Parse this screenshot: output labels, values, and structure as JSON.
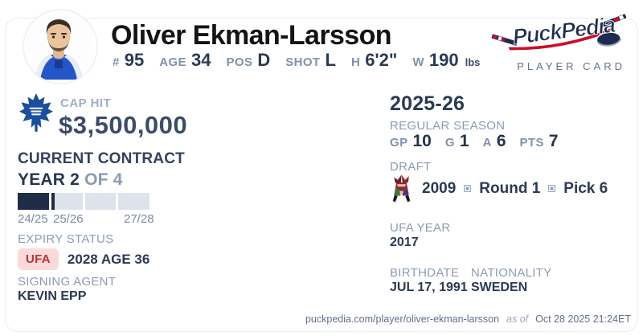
{
  "header": {
    "name": "Oliver Ekman-Larsson",
    "stats": [
      {
        "label": "#",
        "value": "95"
      },
      {
        "label": "AGE",
        "value": "34"
      },
      {
        "label": "POS",
        "value": "D"
      },
      {
        "label": "SHOT",
        "value": "L"
      },
      {
        "label": "H",
        "value": "6'2\""
      },
      {
        "label": "W",
        "value": "190",
        "suffix": "lbs"
      }
    ],
    "brand": {
      "wordmark": "PuckPedia",
      "tagline": "PLAYER CARD"
    }
  },
  "left": {
    "cap_hit_label": "CAP HIT",
    "cap_hit_value": "$3,500,000",
    "contract_heading": "CURRENT CONTRACT",
    "year_current": "YEAR 2",
    "year_of": "OF 4",
    "contract_progress": {
      "segments": [
        100,
        11,
        0,
        0
      ]
    },
    "season_ticks": [
      "24/25",
      "25/26",
      "27/28"
    ],
    "expiry_label": "EXPIRY STATUS",
    "expiry_badge": "UFA",
    "expiry_value": "2028 AGE 36",
    "agent_label": "SIGNING AGENT",
    "agent_value": "KEVIN EPP"
  },
  "right": {
    "season_heading": "2025-26",
    "regular_season_label": "REGULAR SEASON",
    "season_stats": [
      {
        "label": "GP",
        "value": "10"
      },
      {
        "label": "G",
        "value": "1"
      },
      {
        "label": "A",
        "value": "6"
      },
      {
        "label": "PTS",
        "value": "7"
      }
    ],
    "draft_label": "DRAFT",
    "draft_year": "2009",
    "draft_round": "Round 1",
    "draft_pick": "Pick 6",
    "ufa_year_label": "UFA YEAR",
    "ufa_year_value": "2017",
    "birthdate_label": "BIRTHDATE",
    "birthdate_value": "JUL 17, 1991",
    "nationality_label": "NATIONALITY",
    "nationality_value": "SWEDEN"
  },
  "footer": {
    "url": "puckpedia.com/player/oliver-ekman-larsson",
    "as_of_label": "as of",
    "timestamp": "Oct 28 2025 21:24ET"
  },
  "colors": {
    "accent_navy": "#1f2c47",
    "label_gray": "#8b9cb2",
    "value_navy": "#2b3a52",
    "badge_red_bg": "#fbdada",
    "badge_red_text": "#b43138",
    "brand_navy": "#1d2b4f",
    "brand_red": "#c8102e"
  }
}
